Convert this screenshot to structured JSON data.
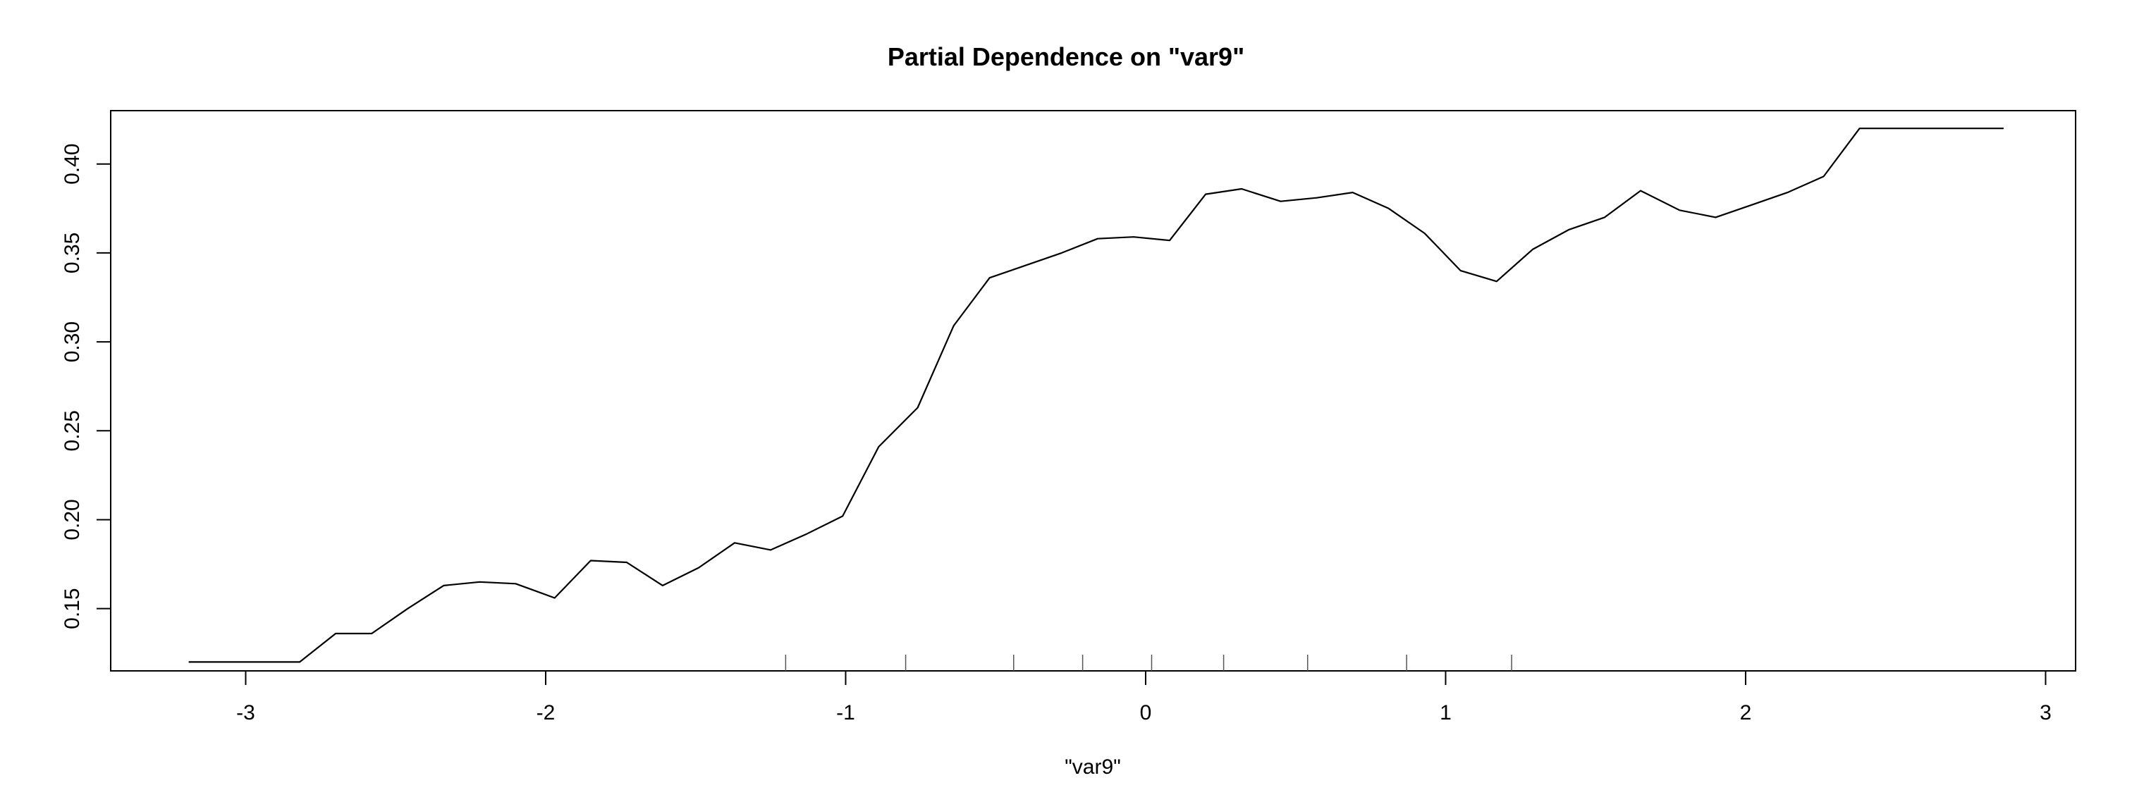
{
  "chart_data": {
    "type": "line",
    "title": "Partial Dependence on \"var9\"",
    "xlabel": "\"var9\"",
    "ylabel": "",
    "xlim": [
      -3.45,
      3.1
    ],
    "ylim": [
      0.115,
      0.43
    ],
    "x_ticks": [
      -3,
      -2,
      -1,
      0,
      1,
      2,
      3
    ],
    "x_tick_labels": [
      "-3",
      "-2",
      "-1",
      "0",
      "1",
      "2",
      "3"
    ],
    "y_ticks": [
      0.15,
      0.2,
      0.25,
      0.3,
      0.35,
      0.4
    ],
    "y_tick_labels": [
      "0.15",
      "0.20",
      "0.25",
      "0.30",
      "0.35",
      "0.40"
    ],
    "grid": false,
    "legend": "none",
    "line_color": "#000000",
    "series": [
      {
        "x": [
          -3.19,
          -3.07,
          -2.95,
          -2.82,
          -2.7,
          -2.58,
          -2.46,
          -2.34,
          -2.22,
          -2.1,
          -1.97,
          -1.85,
          -1.73,
          -1.61,
          -1.49,
          -1.37,
          -1.25,
          -1.13,
          -1.01,
          -0.89,
          -0.76,
          -0.64,
          -0.52,
          -0.4,
          -0.28,
          -0.16,
          -0.04,
          0.08,
          0.2,
          0.32,
          0.45,
          0.57,
          0.69,
          0.81,
          0.93,
          1.05,
          1.17,
          1.29,
          1.41,
          1.53,
          1.65,
          1.78,
          1.9,
          2.02,
          2.14,
          2.26,
          2.38,
          2.5,
          2.62,
          2.74,
          2.86
        ],
        "values": [
          0.12,
          0.12,
          0.12,
          0.12,
          0.136,
          0.136,
          0.15,
          0.163,
          0.165,
          0.164,
          0.156,
          0.177,
          0.176,
          0.163,
          0.173,
          0.187,
          0.183,
          0.192,
          0.202,
          0.241,
          0.263,
          0.309,
          0.336,
          0.343,
          0.35,
          0.358,
          0.359,
          0.357,
          0.383,
          0.386,
          0.379,
          0.381,
          0.384,
          0.375,
          0.361,
          0.34,
          0.334,
          0.352,
          0.363,
          0.37,
          0.385,
          0.374,
          0.37,
          0.377,
          0.384,
          0.393,
          0.42,
          0.42,
          0.42,
          0.42,
          0.42
        ]
      }
    ],
    "rug_x": [
      -1.2,
      -0.8,
      -0.44,
      -0.21,
      0.02,
      0.26,
      0.54,
      0.87,
      1.22
    ]
  }
}
